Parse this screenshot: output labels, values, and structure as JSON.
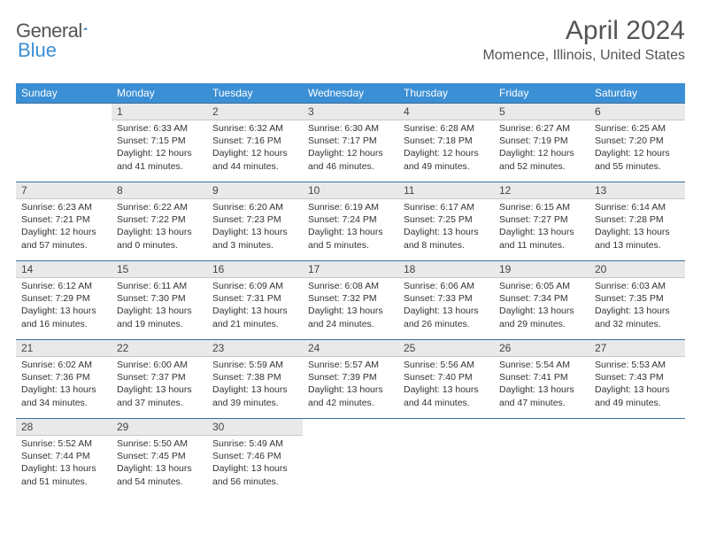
{
  "logo": {
    "word1": "General",
    "word2": "Blue"
  },
  "title": "April 2024",
  "location": "Momence, Illinois, United States",
  "colors": {
    "header_bg": "#3b8fd4",
    "header_text": "#ffffff",
    "daynum_bg": "#e9e9e9",
    "row_divider": "#3b6e9c",
    "text": "#333333",
    "logo_gray": "#555555",
    "logo_blue": "#3b8fd4",
    "page_bg": "#ffffff"
  },
  "typography": {
    "title_size_pt": 22,
    "location_size_pt": 12,
    "dayheader_size_pt": 9,
    "cell_size_pt": 8
  },
  "day_headers": [
    "Sunday",
    "Monday",
    "Tuesday",
    "Wednesday",
    "Thursday",
    "Friday",
    "Saturday"
  ],
  "weeks": [
    {
      "nums": [
        "",
        "1",
        "2",
        "3",
        "4",
        "5",
        "6"
      ],
      "cells": [
        {},
        {
          "sunrise": "Sunrise: 6:33 AM",
          "sunset": "Sunset: 7:15 PM",
          "d1": "Daylight: 12 hours",
          "d2": "and 41 minutes."
        },
        {
          "sunrise": "Sunrise: 6:32 AM",
          "sunset": "Sunset: 7:16 PM",
          "d1": "Daylight: 12 hours",
          "d2": "and 44 minutes."
        },
        {
          "sunrise": "Sunrise: 6:30 AM",
          "sunset": "Sunset: 7:17 PM",
          "d1": "Daylight: 12 hours",
          "d2": "and 46 minutes."
        },
        {
          "sunrise": "Sunrise: 6:28 AM",
          "sunset": "Sunset: 7:18 PM",
          "d1": "Daylight: 12 hours",
          "d2": "and 49 minutes."
        },
        {
          "sunrise": "Sunrise: 6:27 AM",
          "sunset": "Sunset: 7:19 PM",
          "d1": "Daylight: 12 hours",
          "d2": "and 52 minutes."
        },
        {
          "sunrise": "Sunrise: 6:25 AM",
          "sunset": "Sunset: 7:20 PM",
          "d1": "Daylight: 12 hours",
          "d2": "and 55 minutes."
        }
      ]
    },
    {
      "nums": [
        "7",
        "8",
        "9",
        "10",
        "11",
        "12",
        "13"
      ],
      "cells": [
        {
          "sunrise": "Sunrise: 6:23 AM",
          "sunset": "Sunset: 7:21 PM",
          "d1": "Daylight: 12 hours",
          "d2": "and 57 minutes."
        },
        {
          "sunrise": "Sunrise: 6:22 AM",
          "sunset": "Sunset: 7:22 PM",
          "d1": "Daylight: 13 hours",
          "d2": "and 0 minutes."
        },
        {
          "sunrise": "Sunrise: 6:20 AM",
          "sunset": "Sunset: 7:23 PM",
          "d1": "Daylight: 13 hours",
          "d2": "and 3 minutes."
        },
        {
          "sunrise": "Sunrise: 6:19 AM",
          "sunset": "Sunset: 7:24 PM",
          "d1": "Daylight: 13 hours",
          "d2": "and 5 minutes."
        },
        {
          "sunrise": "Sunrise: 6:17 AM",
          "sunset": "Sunset: 7:25 PM",
          "d1": "Daylight: 13 hours",
          "d2": "and 8 minutes."
        },
        {
          "sunrise": "Sunrise: 6:15 AM",
          "sunset": "Sunset: 7:27 PM",
          "d1": "Daylight: 13 hours",
          "d2": "and 11 minutes."
        },
        {
          "sunrise": "Sunrise: 6:14 AM",
          "sunset": "Sunset: 7:28 PM",
          "d1": "Daylight: 13 hours",
          "d2": "and 13 minutes."
        }
      ]
    },
    {
      "nums": [
        "14",
        "15",
        "16",
        "17",
        "18",
        "19",
        "20"
      ],
      "cells": [
        {
          "sunrise": "Sunrise: 6:12 AM",
          "sunset": "Sunset: 7:29 PM",
          "d1": "Daylight: 13 hours",
          "d2": "and 16 minutes."
        },
        {
          "sunrise": "Sunrise: 6:11 AM",
          "sunset": "Sunset: 7:30 PM",
          "d1": "Daylight: 13 hours",
          "d2": "and 19 minutes."
        },
        {
          "sunrise": "Sunrise: 6:09 AM",
          "sunset": "Sunset: 7:31 PM",
          "d1": "Daylight: 13 hours",
          "d2": "and 21 minutes."
        },
        {
          "sunrise": "Sunrise: 6:08 AM",
          "sunset": "Sunset: 7:32 PM",
          "d1": "Daylight: 13 hours",
          "d2": "and 24 minutes."
        },
        {
          "sunrise": "Sunrise: 6:06 AM",
          "sunset": "Sunset: 7:33 PM",
          "d1": "Daylight: 13 hours",
          "d2": "and 26 minutes."
        },
        {
          "sunrise": "Sunrise: 6:05 AM",
          "sunset": "Sunset: 7:34 PM",
          "d1": "Daylight: 13 hours",
          "d2": "and 29 minutes."
        },
        {
          "sunrise": "Sunrise: 6:03 AM",
          "sunset": "Sunset: 7:35 PM",
          "d1": "Daylight: 13 hours",
          "d2": "and 32 minutes."
        }
      ]
    },
    {
      "nums": [
        "21",
        "22",
        "23",
        "24",
        "25",
        "26",
        "27"
      ],
      "cells": [
        {
          "sunrise": "Sunrise: 6:02 AM",
          "sunset": "Sunset: 7:36 PM",
          "d1": "Daylight: 13 hours",
          "d2": "and 34 minutes."
        },
        {
          "sunrise": "Sunrise: 6:00 AM",
          "sunset": "Sunset: 7:37 PM",
          "d1": "Daylight: 13 hours",
          "d2": "and 37 minutes."
        },
        {
          "sunrise": "Sunrise: 5:59 AM",
          "sunset": "Sunset: 7:38 PM",
          "d1": "Daylight: 13 hours",
          "d2": "and 39 minutes."
        },
        {
          "sunrise": "Sunrise: 5:57 AM",
          "sunset": "Sunset: 7:39 PM",
          "d1": "Daylight: 13 hours",
          "d2": "and 42 minutes."
        },
        {
          "sunrise": "Sunrise: 5:56 AM",
          "sunset": "Sunset: 7:40 PM",
          "d1": "Daylight: 13 hours",
          "d2": "and 44 minutes."
        },
        {
          "sunrise": "Sunrise: 5:54 AM",
          "sunset": "Sunset: 7:41 PM",
          "d1": "Daylight: 13 hours",
          "d2": "and 47 minutes."
        },
        {
          "sunrise": "Sunrise: 5:53 AM",
          "sunset": "Sunset: 7:43 PM",
          "d1": "Daylight: 13 hours",
          "d2": "and 49 minutes."
        }
      ]
    },
    {
      "nums": [
        "28",
        "29",
        "30",
        "",
        "",
        "",
        ""
      ],
      "cells": [
        {
          "sunrise": "Sunrise: 5:52 AM",
          "sunset": "Sunset: 7:44 PM",
          "d1": "Daylight: 13 hours",
          "d2": "and 51 minutes."
        },
        {
          "sunrise": "Sunrise: 5:50 AM",
          "sunset": "Sunset: 7:45 PM",
          "d1": "Daylight: 13 hours",
          "d2": "and 54 minutes."
        },
        {
          "sunrise": "Sunrise: 5:49 AM",
          "sunset": "Sunset: 7:46 PM",
          "d1": "Daylight: 13 hours",
          "d2": "and 56 minutes."
        },
        {},
        {},
        {},
        {}
      ]
    }
  ]
}
